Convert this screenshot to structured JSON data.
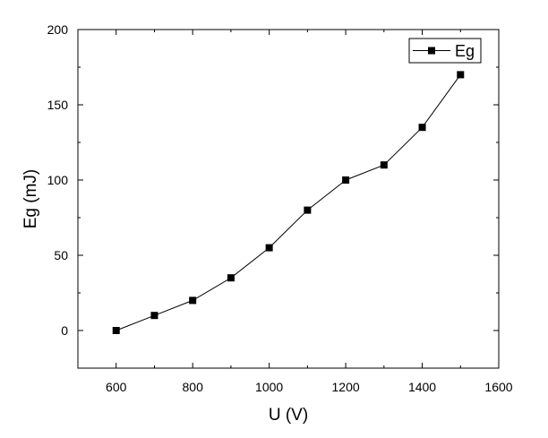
{
  "chart_data": {
    "type": "line",
    "xlabel": "U (V)",
    "ylabel": "Eg (mJ)",
    "xlim": [
      500,
      1600
    ],
    "ylim": [
      -25,
      200
    ],
    "xticks": [
      600,
      800,
      1000,
      1200,
      1400,
      1600
    ],
    "yticks": [
      0,
      50,
      100,
      150,
      200
    ],
    "grid": false,
    "legend_position": "top-right",
    "marker": "square",
    "series": [
      {
        "name": "Eg",
        "x": [
          600,
          700,
          800,
          900,
          1000,
          1100,
          1200,
          1300,
          1400,
          1500
        ],
        "y": [
          0,
          10,
          20,
          35,
          55,
          80,
          100,
          110,
          135,
          170
        ],
        "color": "#000000"
      }
    ]
  }
}
